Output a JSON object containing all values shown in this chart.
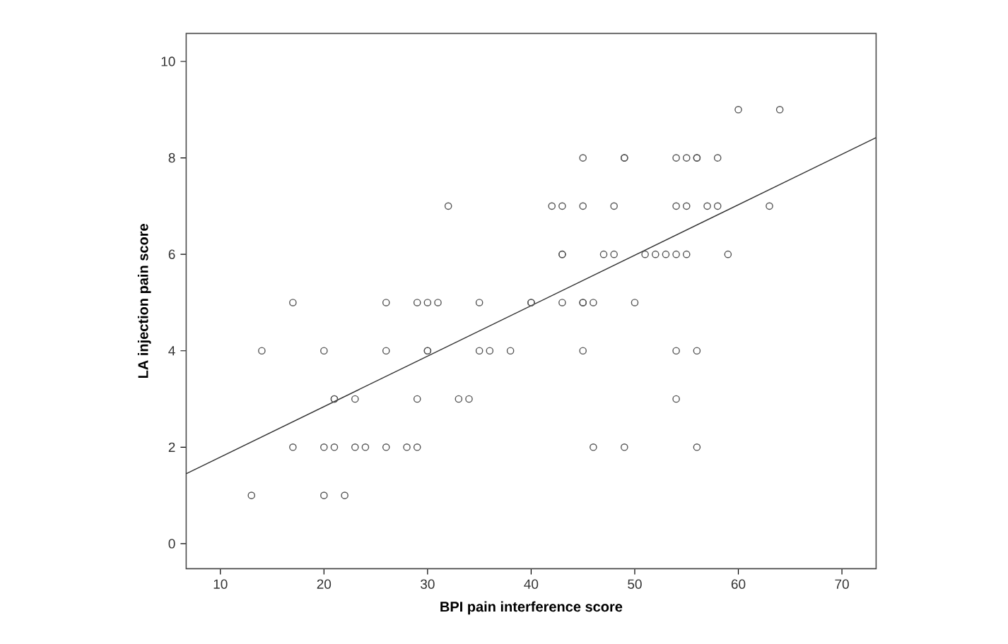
{
  "chart_data": {
    "type": "scatter",
    "xlabel": "BPI pain interference score",
    "ylabel": "LA injection pain score",
    "xlim": [
      6.7,
      73.3
    ],
    "ylim": [
      -0.52,
      10.58
    ],
    "xticks": [
      10,
      20,
      30,
      40,
      50,
      60,
      70
    ],
    "yticks": [
      0,
      2,
      4,
      6,
      8,
      10
    ],
    "grid": false,
    "marker": "circle",
    "series": [
      {
        "color": "#555555",
        "x": [
          60,
          64,
          45,
          49,
          49,
          54,
          55,
          56,
          56,
          58,
          32,
          42,
          43,
          45,
          48,
          54,
          55,
          57,
          58,
          63,
          43,
          43,
          47,
          48,
          51,
          52,
          53,
          54,
          55,
          59,
          17,
          26,
          29,
          30,
          31,
          35,
          40,
          40,
          43,
          45,
          45,
          46,
          50,
          14,
          20,
          26,
          30,
          30,
          35,
          36,
          38,
          45,
          54,
          56,
          21,
          21,
          23,
          29,
          33,
          34,
          54,
          17,
          20,
          21,
          23,
          24,
          26,
          28,
          29,
          46,
          49,
          56,
          13,
          20,
          22
        ],
        "values": [
          9,
          9,
          8,
          8,
          8,
          8,
          8,
          8,
          8,
          8,
          7,
          7,
          7,
          7,
          7,
          7,
          7,
          7,
          7,
          7,
          6,
          6,
          6,
          6,
          6,
          6,
          6,
          6,
          6,
          6,
          5,
          5,
          5,
          5,
          5,
          5,
          5,
          5,
          5,
          5,
          5,
          5,
          5,
          4,
          4,
          4,
          4,
          4,
          4,
          4,
          4,
          4,
          4,
          4,
          3,
          3,
          3,
          3,
          3,
          3,
          3,
          2,
          2,
          2,
          2,
          2,
          2,
          2,
          2,
          2,
          2,
          2,
          1,
          1,
          1
        ]
      },
      {
        "type": "line",
        "color": "#333333",
        "marker": "none",
        "line_style": "solid",
        "x": [
          6.7,
          73.3
        ],
        "values": [
          1.45,
          8.42
        ]
      }
    ]
  }
}
